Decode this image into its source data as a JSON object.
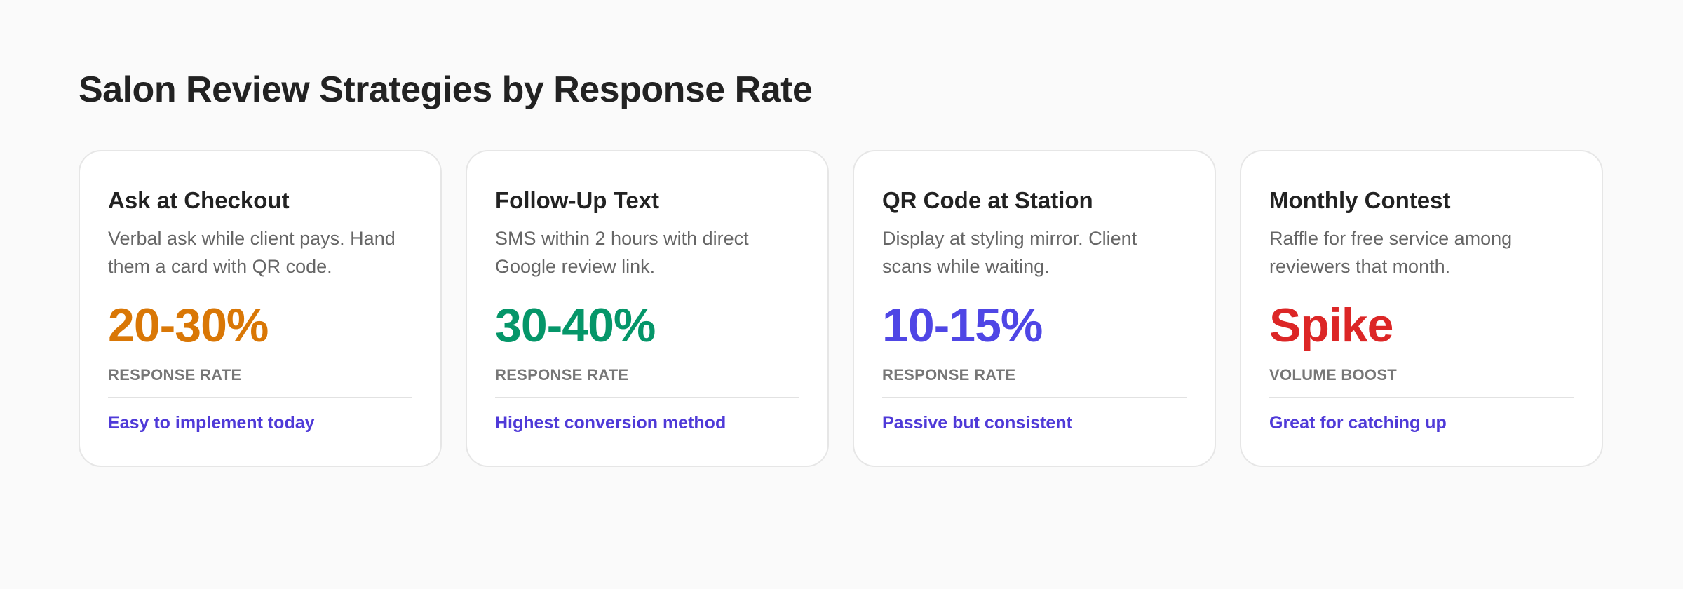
{
  "page": {
    "title": "Salon Review Strategies by Response Rate"
  },
  "cards": [
    {
      "title": "Ask at Checkout",
      "description": "Verbal ask while client pays. Hand them a card with QR code.",
      "value": "20-30%",
      "metric": "RESPONSE RATE",
      "note": "Easy to implement today",
      "value_color": "#d97706"
    },
    {
      "title": "Follow-Up Text",
      "description": "SMS within 2 hours with direct Google review link.",
      "value": "30-40%",
      "metric": "RESPONSE RATE",
      "note": "Highest conversion method",
      "value_color": "#059669"
    },
    {
      "title": "QR Code at Station",
      "description": "Display at styling mirror. Client scans while waiting.",
      "value": "10-15%",
      "metric": "RESPONSE RATE",
      "note": "Passive but consistent",
      "value_color": "#4f46e5"
    },
    {
      "title": "Monthly Contest",
      "description": "Raffle for free service among reviewers that month.",
      "value": "Spike",
      "metric": "VOLUME BOOST",
      "note": "Great for catching up",
      "value_color": "#dc2626"
    }
  ],
  "colors": {
    "background": "#fafafa",
    "title": "#222222",
    "description": "#666666",
    "metric": "#777777",
    "note": "#4f3ad8"
  }
}
